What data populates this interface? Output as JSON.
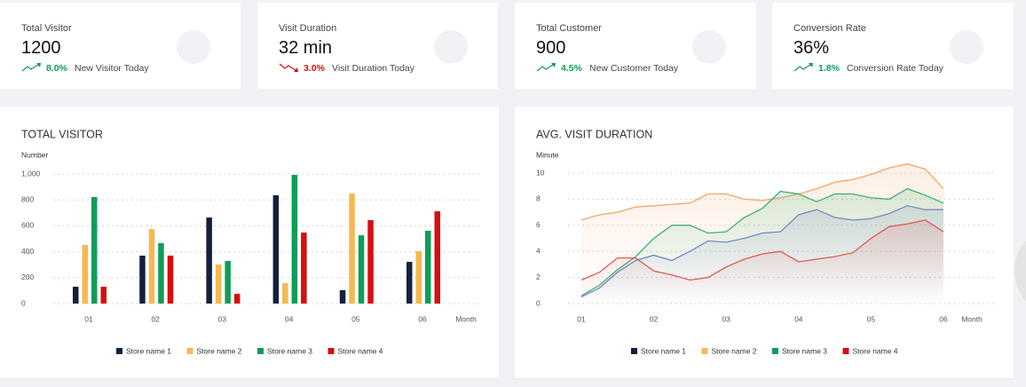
{
  "kpis": [
    {
      "title": "Total Visitor",
      "value": "1200",
      "change": "8.0%",
      "note": "New Visitor Today",
      "trend": "up"
    },
    {
      "title": "Visit Duration",
      "value": "32 min",
      "change": "3.0%",
      "note": "Visit Duration Today",
      "trend": "down"
    },
    {
      "title": "Total Customer",
      "value": "900",
      "change": "4.5%",
      "note": "New Customer Today",
      "trend": "up"
    },
    {
      "title": "Conversion Rate",
      "value": "36%",
      "change": "1.8%",
      "note": "Conversion Rate Today",
      "trend": "up"
    }
  ],
  "chart_data": [
    {
      "type": "bar",
      "title": "TOTAL VISITOR",
      "y_label": "Number",
      "x_label": "Month",
      "categories": [
        "01",
        "02",
        "03",
        "04",
        "05",
        "06"
      ],
      "series": [
        {
          "name": "Store name 1",
          "color": "#14213d",
          "values": [
            130,
            370,
            664,
            836,
            103,
            322
          ]
        },
        {
          "name": "Store name 2",
          "color": "#f6b851",
          "values": [
            452,
            575,
            301,
            158,
            849,
            404
          ]
        },
        {
          "name": "Store name 3",
          "color": "#0f9d58",
          "values": [
            822,
            466,
            329,
            993,
            527,
            562
          ]
        },
        {
          "name": "Store name 4",
          "color": "#d50f0f",
          "values": [
            130,
            370,
            75,
            548,
            644,
            712
          ]
        }
      ],
      "ylim": [
        0,
        1000
      ],
      "yticks": [
        0,
        200,
        400,
        600,
        800,
        {
          "value": 1000,
          "label": "1,000"
        }
      ],
      "grid": true,
      "legend": "bottom"
    },
    {
      "type": "line",
      "title": "AVG. VISIT DURATION",
      "y_label": "Minute",
      "x_label": "Month",
      "x": [
        1,
        1.25,
        1.5,
        1.75,
        2,
        2.25,
        2.5,
        2.75,
        3,
        3.25,
        3.5,
        3.75,
        4,
        4.25,
        4.5,
        4.75,
        5,
        5.25,
        5.5,
        5.75,
        6
      ],
      "series": [
        {
          "name": "Store name 1",
          "color": "#14213d",
          "line_color": "#6f80d8",
          "values": [
            0.5,
            1.2,
            2.4,
            3.3,
            3.7,
            3.3,
            4.0,
            4.8,
            4.7,
            5.0,
            5.4,
            5.5,
            6.8,
            7.2,
            6.6,
            6.4,
            6.5,
            6.9,
            7.5,
            7.2,
            7.2
          ]
        },
        {
          "name": "Store name 2",
          "color": "#f6b851",
          "line_color": "#f5a66a",
          "values": [
            6.4,
            6.8,
            7.0,
            7.4,
            7.5,
            7.6,
            7.7,
            8.4,
            8.4,
            8.0,
            7.9,
            8.1,
            8.4,
            8.8,
            9.3,
            9.5,
            9.9,
            10.4,
            10.7,
            10.3,
            8.8
          ]
        },
        {
          "name": "Store name 3",
          "color": "#0f9d58",
          "line_color": "#3bb273",
          "values": [
            0.6,
            1.4,
            2.6,
            3.6,
            5.0,
            6.0,
            6.0,
            5.4,
            5.5,
            6.6,
            7.3,
            8.6,
            8.4,
            7.8,
            8.4,
            8.4,
            8.1,
            8.0,
            8.8,
            8.3,
            7.7
          ]
        },
        {
          "name": "Store name 4",
          "color": "#d50f0f",
          "line_color": "#e05a4e",
          "values": [
            1.8,
            2.4,
            3.5,
            3.5,
            2.5,
            2.2,
            1.8,
            2.0,
            2.8,
            3.4,
            3.8,
            4.0,
            3.2,
            3.4,
            3.6,
            3.9,
            5.0,
            5.9,
            6.1,
            6.4,
            5.5
          ]
        }
      ],
      "xlim": [
        1,
        6
      ],
      "xticks": [
        {
          "value": 1,
          "label": "01"
        },
        {
          "value": 2,
          "label": "02"
        },
        {
          "value": 3,
          "label": "03"
        },
        {
          "value": 4,
          "label": "04"
        },
        {
          "value": 5,
          "label": "05"
        },
        {
          "value": 6,
          "label": "06"
        }
      ],
      "ylim": [
        0,
        10
      ],
      "yticks": [
        0,
        2,
        4,
        6,
        8,
        10
      ],
      "grid": true,
      "legend": "bottom"
    }
  ]
}
